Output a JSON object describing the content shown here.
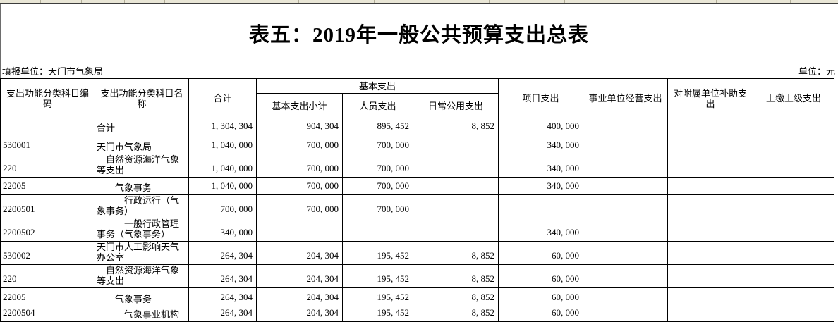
{
  "page": {
    "title": "表五：2019年一般公共预算支出总表",
    "reporting_unit": "填报单位：天门市气象局",
    "unit": "单位：元"
  },
  "table": {
    "header": {
      "code": "支出功能分类科目编码",
      "name": "支出功能分类科目名称",
      "total": "合计",
      "basic_group": "基本支出",
      "basic_subtotal": "基本支出小计",
      "personnel": "人员支出",
      "daily_public": "日常公用支出",
      "project": "项目支出",
      "business_operation": "事业单位经营支出",
      "subsidy_affiliated": "对附属单位补助支出",
      "remit_superior": "上缴上级支出"
    },
    "rows": [
      {
        "code": "",
        "name": "合计",
        "indent": 0,
        "total": "1, 304, 304",
        "basic_subtotal": "904, 304",
        "personnel": "895, 452",
        "daily_public": "8, 852",
        "project": "400, 000",
        "business_operation": "",
        "subsidy_affiliated": "",
        "remit_superior": ""
      },
      {
        "code": "530001",
        "name": "天门市气象局",
        "indent": 0,
        "total": "1, 040, 000",
        "basic_subtotal": "700, 000",
        "personnel": "700, 000",
        "daily_public": "",
        "project": "340, 000",
        "business_operation": "",
        "subsidy_affiliated": "",
        "remit_superior": ""
      },
      {
        "code": "220",
        "name": "自然资源海洋气象等支出",
        "indent": 1,
        "total": "1, 040, 000",
        "basic_subtotal": "700, 000",
        "personnel": "700, 000",
        "daily_public": "",
        "project": "340, 000",
        "business_operation": "",
        "subsidy_affiliated": "",
        "remit_superior": ""
      },
      {
        "code": "22005",
        "name": "气象事务",
        "indent": 2,
        "total": "1, 040, 000",
        "basic_subtotal": "700, 000",
        "personnel": "700, 000",
        "daily_public": "",
        "project": "340, 000",
        "business_operation": "",
        "subsidy_affiliated": "",
        "remit_superior": ""
      },
      {
        "code": "2200501",
        "name": "行政运行（气象事务）",
        "indent": 3,
        "total": "700, 000",
        "basic_subtotal": "700, 000",
        "personnel": "700, 000",
        "daily_public": "",
        "project": "",
        "business_operation": "",
        "subsidy_affiliated": "",
        "remit_superior": ""
      },
      {
        "code": "2200502",
        "name": "一般行政管理事务（气象事务）",
        "indent": 3,
        "total": "340, 000",
        "basic_subtotal": "",
        "personnel": "",
        "daily_public": "",
        "project": "340, 000",
        "business_operation": "",
        "subsidy_affiliated": "",
        "remit_superior": ""
      },
      {
        "code": "530002",
        "name": "天门市人工影响天气办公室",
        "indent": 0,
        "total": "264, 304",
        "basic_subtotal": "204, 304",
        "personnel": "195, 452",
        "daily_public": "8, 852",
        "project": "60, 000",
        "business_operation": "",
        "subsidy_affiliated": "",
        "remit_superior": ""
      },
      {
        "code": "220",
        "name": "自然资源海洋气象等支出",
        "indent": 1,
        "total": "264, 304",
        "basic_subtotal": "204, 304",
        "personnel": "195, 452",
        "daily_public": "8, 852",
        "project": "60, 000",
        "business_operation": "",
        "subsidy_affiliated": "",
        "remit_superior": ""
      },
      {
        "code": "22005",
        "name": "气象事务",
        "indent": 2,
        "total": "264, 304",
        "basic_subtotal": "204, 304",
        "personnel": "195, 452",
        "daily_public": "8, 852",
        "project": "60, 000",
        "business_operation": "",
        "subsidy_affiliated": "",
        "remit_superior": ""
      },
      {
        "code": "2200504",
        "name": "气象事业机构",
        "indent": 3,
        "total": "264, 304",
        "basic_subtotal": "204, 304",
        "personnel": "195, 452",
        "daily_public": "8, 852",
        "project": "60, 000",
        "business_operation": "",
        "subsidy_affiliated": "",
        "remit_superior": ""
      }
    ]
  }
}
